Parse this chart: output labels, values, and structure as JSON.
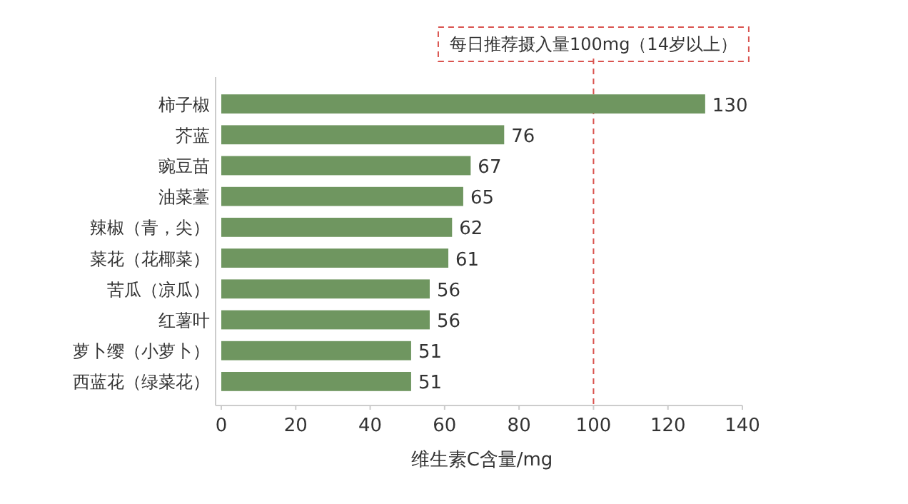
{
  "chart_data": {
    "type": "bar",
    "orientation": "horizontal",
    "xlabel": "维生素C含量/mg",
    "categories": [
      "柿子椒",
      "芥蓝",
      "豌豆苗",
      "油菜薹",
      "辣椒（青，尖）",
      "菜花（花椰菜）",
      "苦瓜（凉瓜）",
      "红薯叶",
      "萝卜缨（小萝卜）",
      "西蓝花（绿菜花）"
    ],
    "values": [
      130,
      76,
      67,
      65,
      62,
      61,
      56,
      56,
      51,
      51
    ],
    "color": "#6f9660",
    "data_labels": true,
    "xlim": [
      0,
      140
    ],
    "xticks": [
      0,
      20,
      40,
      60,
      80,
      100,
      120,
      140
    ],
    "ref_lines": [
      {
        "axis": "x",
        "value": 100,
        "label": "每日推荐摄入量100mg（14岁以上）",
        "color": "#d9534f",
        "line_style": "dashed"
      }
    ],
    "grid": false
  }
}
